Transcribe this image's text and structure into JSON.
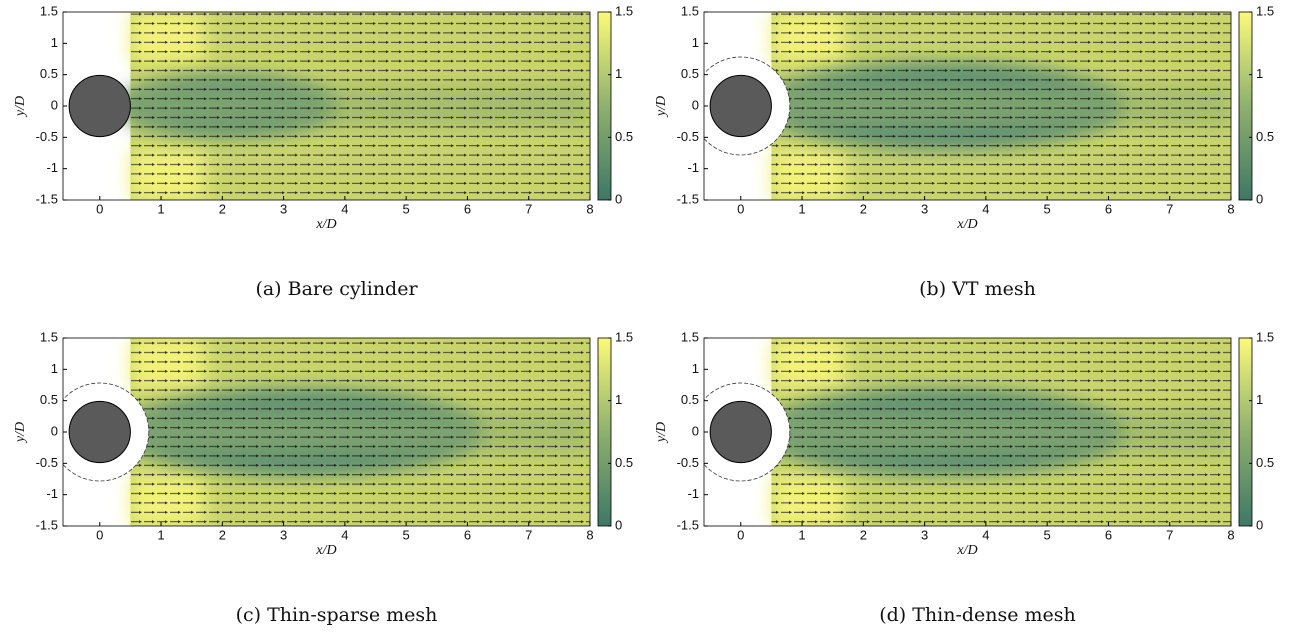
{
  "chart_data": [
    {
      "type": "quiver",
      "caption": "(a) Bare cylinder",
      "xlabel": "x/D",
      "ylabel": "y/D",
      "xlim": [
        -0.6,
        8
      ],
      "ylim": [
        -1.5,
        1.5
      ],
      "xticks": [
        0,
        1,
        2,
        3,
        4,
        5,
        6,
        7,
        8
      ],
      "yticks": [
        -1.5,
        -1,
        -0.5,
        0,
        0.5,
        1,
        1.5
      ],
      "clim": [
        0,
        1.5
      ],
      "cticks": [
        0,
        0.5,
        1,
        1.5
      ],
      "shroud": false
    },
    {
      "type": "quiver",
      "caption": "(b) VT mesh",
      "xlabel": "x/D",
      "ylabel": "y/D",
      "xlim": [
        -0.6,
        8
      ],
      "ylim": [
        -1.5,
        1.5
      ],
      "xticks": [
        0,
        1,
        2,
        3,
        4,
        5,
        6,
        7,
        8
      ],
      "yticks": [
        -1.5,
        -1,
        -0.5,
        0,
        0.5,
        1,
        1.5
      ],
      "clim": [
        0,
        1.5
      ],
      "cticks": [
        0,
        0.5,
        1,
        1.5
      ],
      "shroud": true
    },
    {
      "type": "quiver",
      "caption": "(c) Thin-sparse mesh",
      "xlabel": "x/D",
      "ylabel": "y/D",
      "xlim": [
        -0.6,
        8
      ],
      "ylim": [
        -1.5,
        1.5
      ],
      "xticks": [
        0,
        1,
        2,
        3,
        4,
        5,
        6,
        7,
        8
      ],
      "yticks": [
        -1.5,
        -1,
        -0.5,
        0,
        0.5,
        1,
        1.5
      ],
      "clim": [
        0,
        1.5
      ],
      "cticks": [
        0,
        0.5,
        1,
        1.5
      ],
      "shroud": true
    },
    {
      "type": "quiver",
      "caption": "(d) Thin-dense mesh",
      "xlabel": "x/D",
      "ylabel": "y/D",
      "xlim": [
        -0.6,
        8
      ],
      "ylim": [
        -1.5,
        1.5
      ],
      "xticks": [
        0,
        1,
        2,
        3,
        4,
        5,
        6,
        7,
        8
      ],
      "yticks": [
        -1.5,
        -1,
        -0.5,
        0,
        0.5,
        1,
        1.5
      ],
      "clim": [
        0,
        1.5
      ],
      "cticks": [
        0,
        0.5,
        1,
        1.5
      ],
      "shroud": true
    }
  ]
}
